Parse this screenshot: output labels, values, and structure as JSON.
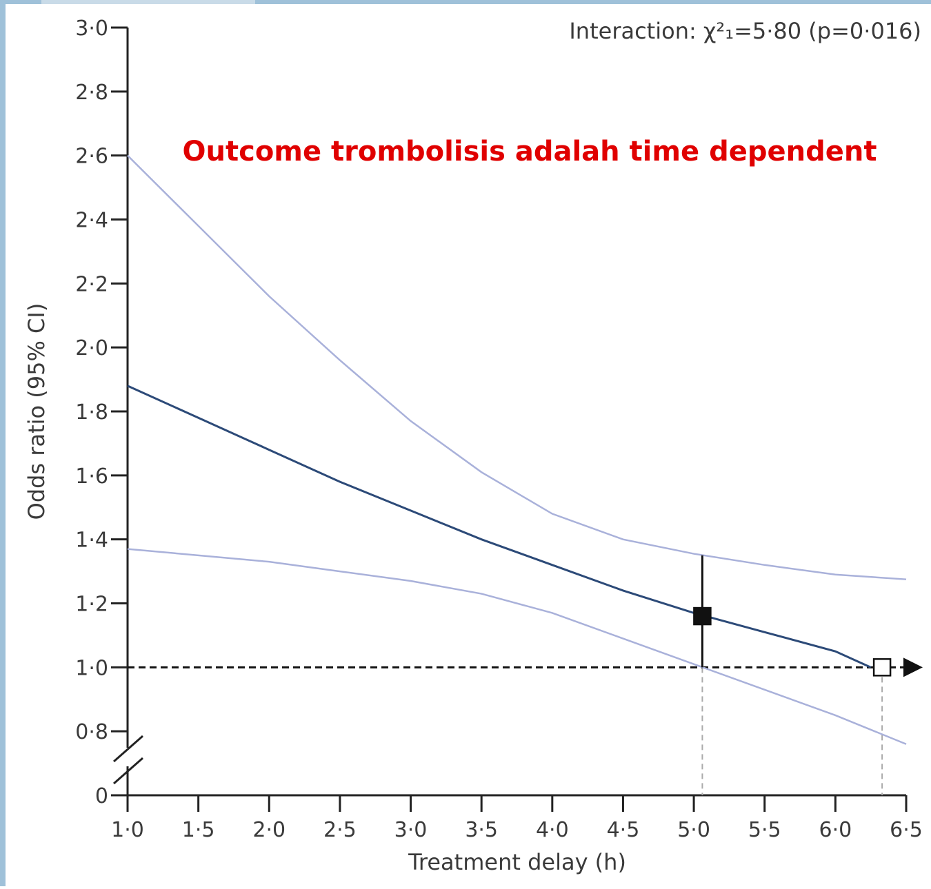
{
  "chart_data": {
    "type": "line",
    "annotation": "Interaction: χ²₁=5·80 (p=0·016)",
    "highlight_text": "Outcome trombolisis adalah time dependent",
    "xlabel": "Treatment delay (h)",
    "ylabel": "Odds ratio (95% CI)",
    "xlim": [
      1.0,
      6.5
    ],
    "ylim": [
      0.6,
      3.0
    ],
    "axis_break": true,
    "xticks": [
      {
        "value": 1.0,
        "label": "1·0"
      },
      {
        "value": 1.5,
        "label": "1·5"
      },
      {
        "value": 2.0,
        "label": "2·0"
      },
      {
        "value": 2.5,
        "label": "2·5"
      },
      {
        "value": 3.0,
        "label": "3·0"
      },
      {
        "value": 3.5,
        "label": "3·5"
      },
      {
        "value": 4.0,
        "label": "4·0"
      },
      {
        "value": 4.5,
        "label": "4·5"
      },
      {
        "value": 5.0,
        "label": "5·0"
      },
      {
        "value": 5.5,
        "label": "5·5"
      },
      {
        "value": 6.0,
        "label": "6·0"
      },
      {
        "value": 6.5,
        "label": "6·5"
      }
    ],
    "yticks": [
      0,
      {
        "value": 0.8,
        "label": "0·8"
      },
      {
        "value": 1.0,
        "label": "1·0"
      },
      {
        "value": 1.2,
        "label": "1·2"
      },
      {
        "value": 1.4,
        "label": "1·4"
      },
      {
        "value": 1.6,
        "label": "1·6"
      },
      {
        "value": 1.8,
        "label": "1·8"
      },
      {
        "value": 2.0,
        "label": "2·0"
      },
      {
        "value": 2.2,
        "label": "2·2"
      },
      {
        "value": 2.4,
        "label": "2·4"
      },
      {
        "value": 2.6,
        "label": "2·6"
      },
      {
        "value": 2.8,
        "label": "2·8"
      },
      {
        "value": 3.0,
        "label": "3·0"
      }
    ],
    "series": [
      {
        "color": "#a9b1da",
        "x": [
          1.0,
          1.5,
          2.0,
          2.5,
          3.0,
          3.5,
          4.0,
          4.5,
          5.0,
          5.5,
          6.0,
          6.5
        ],
        "values": [
          2.6,
          2.38,
          2.16,
          1.96,
          1.77,
          1.61,
          1.48,
          1.4,
          1.355,
          1.32,
          1.29,
          1.275
        ]
      },
      {
        "color": "#a9b1da",
        "x": [
          1.0,
          1.5,
          2.0,
          2.5,
          3.0,
          3.5,
          4.0,
          4.5,
          5.0,
          5.5,
          6.0,
          6.5
        ],
        "values": [
          1.37,
          1.35,
          1.33,
          1.3,
          1.27,
          1.23,
          1.17,
          1.09,
          1.01,
          0.93,
          0.85,
          0.76
        ]
      },
      {
        "color": "#2c4a78",
        "x": [
          1.0,
          1.5,
          2.0,
          2.5,
          3.0,
          3.5,
          4.0,
          4.5,
          5.0,
          5.5,
          6.0,
          6.25
        ],
        "values": [
          1.88,
          1.78,
          1.68,
          1.58,
          1.49,
          1.4,
          1.32,
          1.24,
          1.17,
          1.11,
          1.05,
          1.0
        ]
      }
    ],
    "reference_line": 1.0,
    "points": [
      {
        "x": 5.06,
        "y": 1.16,
        "ci_low": 1.0,
        "ci_high": 1.35,
        "filled": true
      },
      {
        "x": 6.33,
        "y": 1.0,
        "filled": false
      }
    ]
  }
}
